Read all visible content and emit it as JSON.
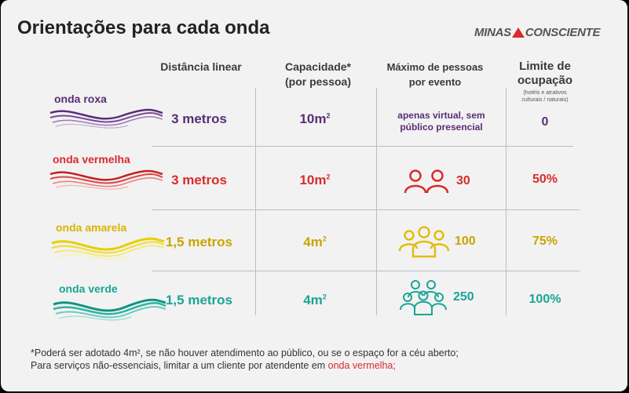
{
  "title": "Orientações para cada onda",
  "brand": {
    "left": "MINAS",
    "right": "CONSCIENTE",
    "accent": "#d92b2b"
  },
  "headers": {
    "distancia": "Distância linear",
    "capacidade_1": "Capacidade*",
    "capacidade_2": "(por pessoa)",
    "maximo_1": "Máximo de pessoas",
    "maximo_2": "por evento",
    "limite_1": "Limite de",
    "limite_2": "ocupação",
    "limite_note_1": "(hotéis e atrativos",
    "limite_note_2": "culturais / naturais)"
  },
  "rows": [
    {
      "name": "onda roxa",
      "color": "#5a2d78",
      "distance": "3 metros",
      "capacity": "10m",
      "capacity_sup": "2",
      "max_text_1": "apenas virtual, sem",
      "max_text_2": "público presencial",
      "max_count": "",
      "limit": "0"
    },
    {
      "name": "onda vermelha",
      "color": "#d92b2b",
      "distance": "3 metros",
      "capacity": "10m",
      "capacity_sup": "2",
      "max_count": "30",
      "icon": "two-people-icon",
      "limit": "50%"
    },
    {
      "name": "onda amarela",
      "color": "#d9b400",
      "distance": "1,5 metros",
      "capacity": "4m",
      "capacity_sup": "2",
      "max_count": "100",
      "icon": "group-people-icon",
      "limit": "75%"
    },
    {
      "name": "onda verde",
      "color": "#1aa595",
      "distance": "1,5 metros",
      "capacity": "4m",
      "capacity_sup": "2",
      "max_count": "250",
      "icon": "crowd-people-icon",
      "limit": "100%"
    }
  ],
  "footnote": {
    "line1": "*Poderá ser adotado 4m², se não houver atendimento ao público, ou se o espaço for a céu aberto;",
    "line2_prefix": "Para serviços não-essenciais, limitar a um cliente por atendente em ",
    "line2_red": "onda vermelha;"
  }
}
